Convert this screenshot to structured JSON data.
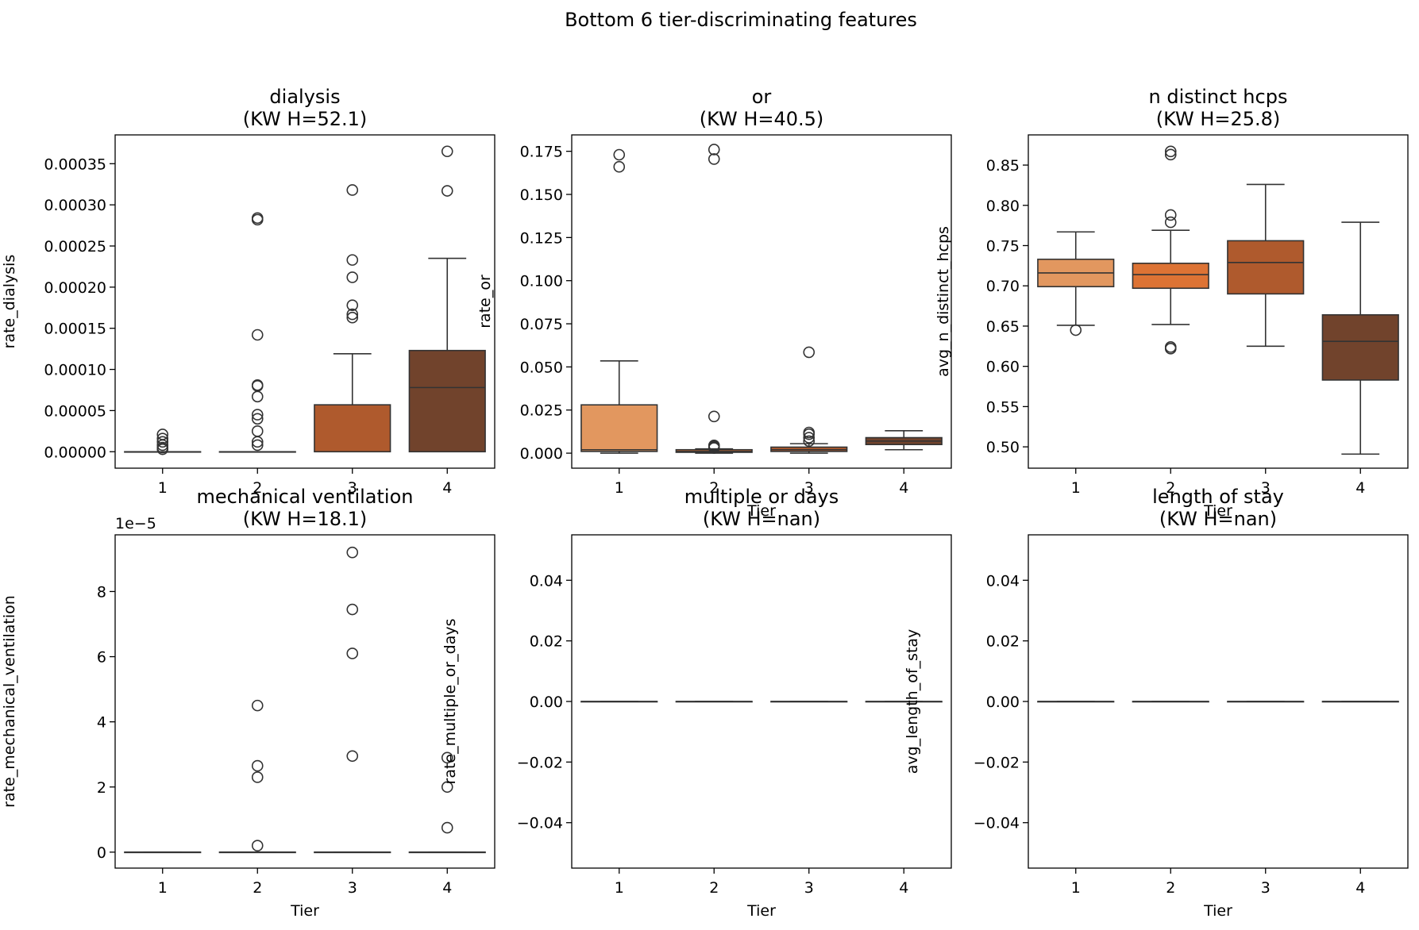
{
  "figure_title": "Bottom 6 tier-discriminating features",
  "colors": {
    "tier1": "#e2975f",
    "tier2": "#dd7334",
    "tier3": "#af5a2d",
    "tier4": "#71432c",
    "edge": "#333333",
    "axes": "#000000"
  },
  "chart_data": [
    {
      "type": "box",
      "title": "dialysis\n(KW H=52.1)",
      "xlabel": "",
      "ylabel": "rate_dialysis",
      "categories": [
        "1",
        "2",
        "3",
        "4"
      ],
      "ylim": [
        -2e-05,
        0.000385
      ],
      "yticks": [
        0,
        5e-05,
        0.0001,
        0.00015,
        0.0002,
        0.00025,
        0.0003,
        0.00035
      ],
      "ytick_labels": [
        "0.00000",
        "0.00005",
        "0.00010",
        "0.00015",
        "0.00020",
        "0.00025",
        "0.00030",
        "0.00035"
      ],
      "offset_label": "",
      "boxes": [
        {
          "tier": "1",
          "q1": 0,
          "median": 0,
          "q3": 0,
          "whislo": 0,
          "whishi": 0,
          "fliers": [
            3e-06,
            5e-06,
            8e-06,
            1.2e-05,
            1.6e-05,
            2.1e-05
          ]
        },
        {
          "tier": "2",
          "q1": 0,
          "median": 0,
          "q3": 0,
          "whislo": 0,
          "whishi": 0,
          "fliers": [
            8e-06,
            1.2e-05,
            2.5e-05,
            4e-05,
            4.5e-05,
            6.7e-05,
            8e-05,
            8.1e-05,
            0.000142,
            0.000282,
            0.000284
          ]
        },
        {
          "tier": "3",
          "q1": 0,
          "median": 0,
          "q3": 5.7e-05,
          "whislo": 0,
          "whishi": 0.000119,
          "fliers": [
            0.000163,
            0.000167,
            0.000178,
            0.000212,
            0.000233,
            0.000318
          ]
        },
        {
          "tier": "4",
          "q1": 0,
          "median": 7.8e-05,
          "q3": 0.000123,
          "whislo": 0,
          "whishi": 0.000235,
          "fliers": [
            0.000317,
            0.000365
          ]
        }
      ]
    },
    {
      "type": "box",
      "title": "or\n(KW H=40.5)",
      "xlabel": "Tier",
      "ylabel": "rate_or",
      "categories": [
        "1",
        "2",
        "3",
        "4"
      ],
      "ylim": [
        -0.0087,
        0.1845
      ],
      "yticks": [
        0,
        0.025,
        0.05,
        0.075,
        0.1,
        0.125,
        0.15,
        0.175
      ],
      "ytick_labels": [
        "0.000",
        "0.025",
        "0.050",
        "0.075",
        "0.100",
        "0.125",
        "0.150",
        "0.175"
      ],
      "offset_label": "",
      "boxes": [
        {
          "tier": "1",
          "q1": 0.001,
          "median": 0.002,
          "q3": 0.028,
          "whislo": 0,
          "whishi": 0.0535,
          "fliers": [
            0.166,
            0.173
          ]
        },
        {
          "tier": "2",
          "q1": 0.0005,
          "median": 0.001,
          "q3": 0.002,
          "whislo": 0,
          "whishi": 0.0025,
          "fliers": [
            0.003,
            0.0035,
            0.004,
            0.0045,
            0.0213,
            0.1705,
            0.176
          ]
        },
        {
          "tier": "3",
          "q1": 0.001,
          "median": 0.002,
          "q3": 0.0035,
          "whislo": 0,
          "whishi": 0.0055,
          "fliers": [
            0.007,
            0.009,
            0.011,
            0.012,
            0.0585
          ]
        },
        {
          "tier": "4",
          "q1": 0.005,
          "median": 0.007,
          "q3": 0.009,
          "whislo": 0.002,
          "whishi": 0.013,
          "fliers": []
        }
      ]
    },
    {
      "type": "box",
      "title": "n distinct hcps\n(KW H=25.8)",
      "xlabel": "Tier",
      "ylabel": "avg_n_distinct_hcps",
      "categories": [
        "1",
        "2",
        "3",
        "4"
      ],
      "ylim": [
        0.4735,
        0.8875
      ],
      "yticks": [
        0.5,
        0.55,
        0.6,
        0.65,
        0.7,
        0.75,
        0.8,
        0.85
      ],
      "ytick_labels": [
        "0.50",
        "0.55",
        "0.60",
        "0.65",
        "0.70",
        "0.75",
        "0.80",
        "0.85"
      ],
      "offset_label": "",
      "boxes": [
        {
          "tier": "1",
          "q1": 0.699,
          "median": 0.716,
          "q3": 0.733,
          "whislo": 0.651,
          "whishi": 0.767,
          "fliers": [
            0.645
          ]
        },
        {
          "tier": "2",
          "q1": 0.697,
          "median": 0.714,
          "q3": 0.728,
          "whislo": 0.652,
          "whishi": 0.769,
          "fliers": [
            0.622,
            0.624,
            0.779,
            0.788,
            0.863,
            0.867
          ]
        },
        {
          "tier": "3",
          "q1": 0.69,
          "median": 0.729,
          "q3": 0.756,
          "whislo": 0.625,
          "whishi": 0.826,
          "fliers": []
        },
        {
          "tier": "4",
          "q1": 0.583,
          "median": 0.631,
          "q3": 0.664,
          "whislo": 0.491,
          "whishi": 0.779,
          "fliers": []
        }
      ]
    },
    {
      "type": "box",
      "title": "mechanical ventilation\n(KW H=18.1)",
      "xlabel": "Tier",
      "ylabel": "rate_mechanical_ventilation",
      "categories": [
        "1",
        "2",
        "3",
        "4"
      ],
      "ylim": [
        -4.9e-06,
        9.74e-05
      ],
      "yticks": [
        0,
        2e-05,
        4e-05,
        6e-05,
        8e-05
      ],
      "ytick_labels": [
        "0",
        "2",
        "4",
        "6",
        "8"
      ],
      "offset_label": "1e−5",
      "boxes": [
        {
          "tier": "1",
          "q1": 0,
          "median": 0,
          "q3": 0,
          "whislo": 0,
          "whishi": 0,
          "fliers": []
        },
        {
          "tier": "2",
          "q1": 0,
          "median": 0,
          "q3": 0,
          "whislo": 0,
          "whishi": 0,
          "fliers": [
            2e-06,
            2.3e-05,
            2.65e-05,
            4.5e-05
          ]
        },
        {
          "tier": "3",
          "q1": 0,
          "median": 0,
          "q3": 0,
          "whislo": 0,
          "whishi": 0,
          "fliers": [
            2.95e-05,
            6.1e-05,
            7.45e-05,
            9.2e-05
          ]
        },
        {
          "tier": "4",
          "q1": 0,
          "median": 0,
          "q3": 0,
          "whislo": 0,
          "whishi": 0,
          "fliers": [
            7.5e-06,
            2e-05,
            2.9e-05
          ]
        }
      ]
    },
    {
      "type": "box",
      "title": "multiple or days\n(KW H=nan)",
      "xlabel": "Tier",
      "ylabel": "rate_multiple_or_days",
      "categories": [
        "1",
        "2",
        "3",
        "4"
      ],
      "ylim": [
        -0.055,
        0.055
      ],
      "yticks": [
        -0.04,
        -0.02,
        0,
        0.02,
        0.04
      ],
      "ytick_labels": [
        "−0.04",
        "−0.02",
        "0.00",
        "0.02",
        "0.04"
      ],
      "offset_label": "",
      "boxes": [
        {
          "tier": "1",
          "q1": 0,
          "median": 0,
          "q3": 0,
          "whislo": 0,
          "whishi": 0,
          "fliers": []
        },
        {
          "tier": "2",
          "q1": 0,
          "median": 0,
          "q3": 0,
          "whislo": 0,
          "whishi": 0,
          "fliers": []
        },
        {
          "tier": "3",
          "q1": 0,
          "median": 0,
          "q3": 0,
          "whislo": 0,
          "whishi": 0,
          "fliers": []
        },
        {
          "tier": "4",
          "q1": 0,
          "median": 0,
          "q3": 0,
          "whislo": 0,
          "whishi": 0,
          "fliers": []
        }
      ]
    },
    {
      "type": "box",
      "title": "length of stay\n(KW H=nan)",
      "xlabel": "Tier",
      "ylabel": "avg_length_of_stay",
      "categories": [
        "1",
        "2",
        "3",
        "4"
      ],
      "ylim": [
        -0.055,
        0.055
      ],
      "yticks": [
        -0.04,
        -0.02,
        0,
        0.02,
        0.04
      ],
      "ytick_labels": [
        "−0.04",
        "−0.02",
        "0.00",
        "0.02",
        "0.04"
      ],
      "offset_label": "",
      "boxes": [
        {
          "tier": "1",
          "q1": 0,
          "median": 0,
          "q3": 0,
          "whislo": 0,
          "whishi": 0,
          "fliers": []
        },
        {
          "tier": "2",
          "q1": 0,
          "median": 0,
          "q3": 0,
          "whislo": 0,
          "whishi": 0,
          "fliers": []
        },
        {
          "tier": "3",
          "q1": 0,
          "median": 0,
          "q3": 0,
          "whislo": 0,
          "whishi": 0,
          "fliers": []
        },
        {
          "tier": "4",
          "q1": 0,
          "median": 0,
          "q3": 0,
          "whislo": 0,
          "whishi": 0,
          "fliers": []
        }
      ]
    }
  ]
}
